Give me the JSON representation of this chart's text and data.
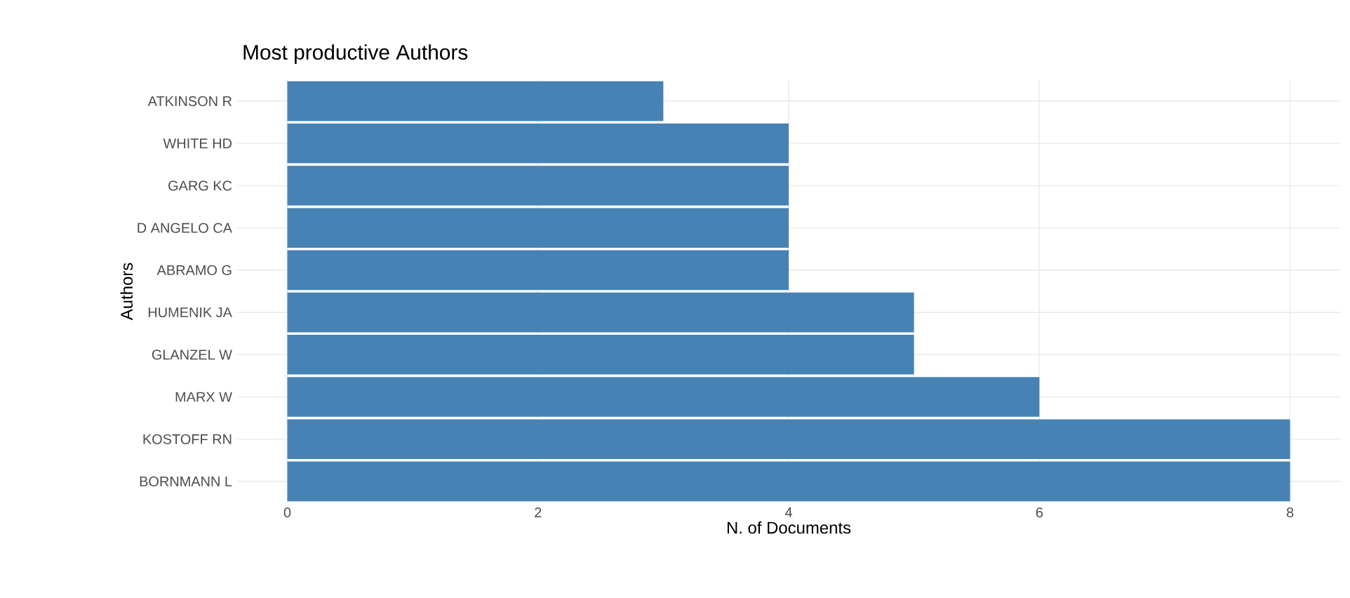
{
  "chart_data": {
    "type": "bar",
    "orientation": "horizontal",
    "title": "Most productive Authors",
    "xlabel": "N. of Documents",
    "ylabel": "Authors",
    "categories": [
      "ATKINSON R",
      "WHITE HD",
      "GARG KC",
      "D ANGELO CA",
      "ABRAMO G",
      "HUMENIK JA",
      "GLANZEL W",
      "MARX W",
      "KOSTOFF RN",
      "BORNMANN L"
    ],
    "values": [
      3,
      4,
      4,
      4,
      4,
      5,
      5,
      6,
      8,
      8
    ],
    "color": "#4682b4",
    "xlim": [
      -0.4,
      8.4
    ],
    "xticks": [
      0,
      2,
      4,
      6,
      8
    ],
    "grid": true
  }
}
